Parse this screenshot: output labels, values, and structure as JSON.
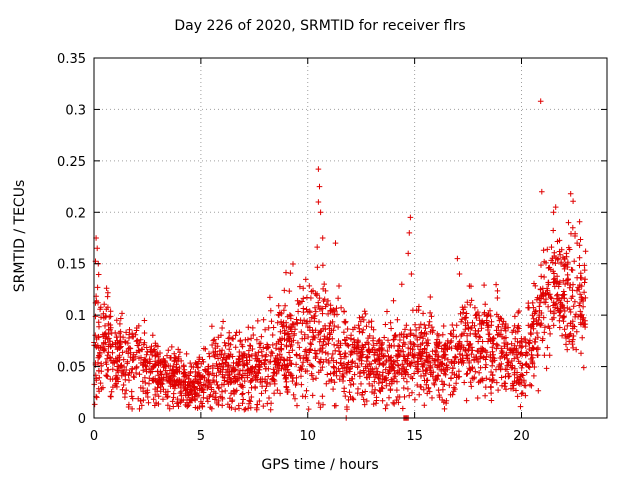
{
  "chart_data": {
    "type": "scatter",
    "title": "Day 226 of 2020, SRMTID for receiver flrs",
    "xlabel": "GPS time / hours",
    "ylabel": "SRMTID / TECUs",
    "xlim": [
      0,
      24
    ],
    "ylim": [
      0,
      0.35
    ],
    "xticks": [
      0,
      5,
      10,
      15,
      20
    ],
    "yticks": [
      0,
      0.05,
      0.1,
      0.15,
      0.2,
      0.25,
      0.3,
      0.35
    ],
    "grid": true,
    "marker": "+",
    "color": "#e00000",
    "envelope_x": [
      0.0,
      0.5,
      1.0,
      1.5,
      2.0,
      2.5,
      3.0,
      3.5,
      4.0,
      4.5,
      5.0,
      5.5,
      6.0,
      6.5,
      7.0,
      7.5,
      8.0,
      8.5,
      9.0,
      9.5,
      10.0,
      10.5,
      11.0,
      11.5,
      12.0,
      12.5,
      13.0,
      13.5,
      14.0,
      14.5,
      15.0,
      15.5,
      16.0,
      16.5,
      17.0,
      17.5,
      18.0,
      18.5,
      19.0,
      19.5,
      20.0,
      20.5,
      21.0,
      21.5,
      22.0,
      22.5,
      23.0
    ],
    "envelope_mean": [
      0.075,
      0.07,
      0.06,
      0.055,
      0.055,
      0.05,
      0.045,
      0.04,
      0.035,
      0.03,
      0.035,
      0.045,
      0.05,
      0.045,
      0.045,
      0.05,
      0.05,
      0.06,
      0.07,
      0.075,
      0.075,
      0.08,
      0.07,
      0.065,
      0.055,
      0.06,
      0.055,
      0.05,
      0.055,
      0.055,
      0.065,
      0.06,
      0.055,
      0.055,
      0.06,
      0.07,
      0.075,
      0.07,
      0.065,
      0.06,
      0.055,
      0.075,
      0.12,
      0.13,
      0.12,
      0.125,
      0.12
    ],
    "envelope_spread": [
      0.03,
      0.028,
      0.022,
      0.02,
      0.02,
      0.018,
      0.016,
      0.015,
      0.013,
      0.012,
      0.015,
      0.018,
      0.02,
      0.018,
      0.018,
      0.02,
      0.02,
      0.022,
      0.025,
      0.028,
      0.03,
      0.032,
      0.025,
      0.022,
      0.02,
      0.02,
      0.02,
      0.018,
      0.02,
      0.02,
      0.022,
      0.022,
      0.02,
      0.02,
      0.022,
      0.025,
      0.025,
      0.025,
      0.022,
      0.022,
      0.02,
      0.03,
      0.03,
      0.03,
      0.028,
      0.03,
      0.03
    ],
    "point_count": 2600,
    "spikes": [
      {
        "x": 0.1,
        "y": 0.175
      },
      {
        "x": 0.15,
        "y": 0.165
      },
      {
        "x": 0.2,
        "y": 0.15
      },
      {
        "x": 10.5,
        "y": 0.242
      },
      {
        "x": 10.55,
        "y": 0.225
      },
      {
        "x": 10.5,
        "y": 0.21
      },
      {
        "x": 10.6,
        "y": 0.2
      },
      {
        "x": 10.7,
        "y": 0.175
      },
      {
        "x": 11.3,
        "y": 0.17
      },
      {
        "x": 14.8,
        "y": 0.195
      },
      {
        "x": 14.75,
        "y": 0.18
      },
      {
        "x": 14.7,
        "y": 0.16
      },
      {
        "x": 14.85,
        "y": 0.14
      },
      {
        "x": 14.4,
        "y": 0.13
      },
      {
        "x": 17.0,
        "y": 0.155
      },
      {
        "x": 17.1,
        "y": 0.14
      },
      {
        "x": 20.9,
        "y": 0.308
      },
      {
        "x": 20.95,
        "y": 0.22
      },
      {
        "x": 21.5,
        "y": 0.2
      },
      {
        "x": 21.6,
        "y": 0.205
      },
      {
        "x": 22.3,
        "y": 0.218
      },
      {
        "x": 22.2,
        "y": 0.19
      },
      {
        "x": 22.4,
        "y": 0.185
      },
      {
        "x": 22.6,
        "y": 0.17
      },
      {
        "x": 22.1,
        "y": 0.16
      },
      {
        "x": 11.8,
        "y": 0.0
      },
      {
        "x": 14.5,
        "y": 0.0
      },
      {
        "x": 14.55,
        "y": 0.0
      },
      {
        "x": 14.6,
        "y": 0.0
      },
      {
        "x": 14.65,
        "y": 0.0
      },
      {
        "x": 14.7,
        "y": 0.0
      }
    ]
  }
}
